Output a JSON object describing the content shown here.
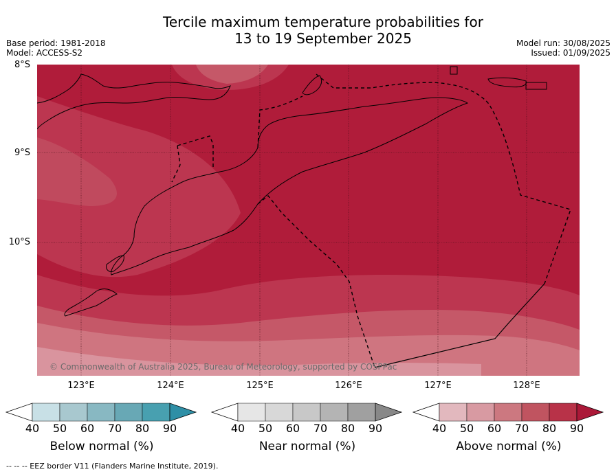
{
  "title_line1": "Tercile maximum temperature probabilities for",
  "title_line2": "13 to 19 September 2025",
  "base_period": "Base period: 1981-2018",
  "model": "Model: ACCESS-S2",
  "model_run": "Model run: 30/08/2025",
  "issued": "Issued: 01/09/2025",
  "copyright": "© Commonwealth of Australia 2025, Bureau of Meteorology, supported by COSPPac",
  "lat_labels": [
    "8°S",
    "9°S",
    "10°S"
  ],
  "lon_labels": [
    "123°E",
    "124°E",
    "125°E",
    "126°E",
    "127°E",
    "128°E"
  ],
  "colorbars": [
    {
      "label": "Below normal (%)",
      "ticks": [
        "40",
        "50",
        "60",
        "70",
        "80",
        "90"
      ],
      "colors": [
        "#ffffff",
        "#c8e0e6",
        "#a8c8cf",
        "#88b8c2",
        "#68a8b5",
        "#48a0b0",
        "#2e8fa6"
      ]
    },
    {
      "label": "Near normal (%)",
      "ticks": [
        "40",
        "50",
        "60",
        "70",
        "80",
        "90"
      ],
      "colors": [
        "#ffffff",
        "#e6e6e6",
        "#d8d8d8",
        "#c8c8c8",
        "#b4b4b4",
        "#a0a0a0",
        "#888888"
      ]
    },
    {
      "label": "Above normal (%)",
      "ticks": [
        "40",
        "50",
        "60",
        "70",
        "80",
        "90"
      ],
      "colors": [
        "#ffffff",
        "#e2b8be",
        "#d89aa2",
        "#cc7880",
        "#c05460",
        "#b83248",
        "#ab1838"
      ]
    }
  ],
  "footer": "--  --  -- EEZ border V11 (Flanders Marine Institute, 2019).",
  "map_colors": {
    "p90": "#b01c3a",
    "p80": "#bc3650",
    "p70": "#c55868",
    "p60": "#cf7580",
    "p50": "#d9949e"
  }
}
